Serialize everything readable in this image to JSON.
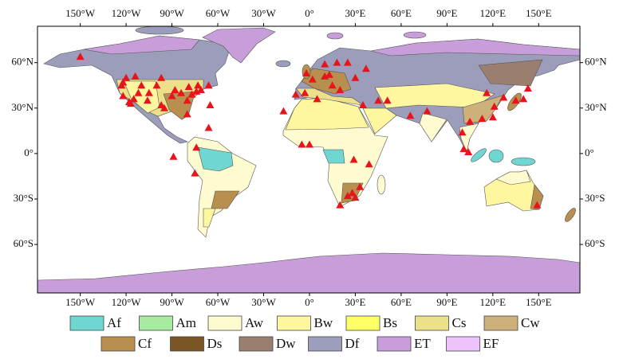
{
  "map": {
    "xlim": [
      -178,
      177
    ],
    "ylim": [
      -92,
      84
    ],
    "xticks": [
      {
        "value": -150,
        "label": "150°W"
      },
      {
        "value": -120,
        "label": "120°W"
      },
      {
        "value": -90,
        "label": "90°W"
      },
      {
        "value": -60,
        "label": "60°W"
      },
      {
        "value": -30,
        "label": "30°W"
      },
      {
        "value": 0,
        "label": "0°"
      },
      {
        "value": 30,
        "label": "30°E"
      },
      {
        "value": 60,
        "label": "60°E"
      },
      {
        "value": 90,
        "label": "90°E"
      },
      {
        "value": 120,
        "label": "120°E"
      },
      {
        "value": 150,
        "label": "150°E"
      }
    ],
    "yticks": [
      {
        "value": 60,
        "label": "60°N"
      },
      {
        "value": 30,
        "label": "30°N"
      },
      {
        "value": 0,
        "label": "0°"
      },
      {
        "value": -30,
        "label": "30°S"
      },
      {
        "value": -60,
        "label": "60°S"
      }
    ],
    "points": {
      "color": "#e8141c",
      "lon": [
        -150,
        -122,
        -123,
        -122,
        -118,
        -117,
        -112,
        -105,
        -106,
        -97,
        -95,
        -90,
        -88,
        -84,
        -80,
        -77,
        -74,
        -71,
        -80,
        -100,
        -110,
        -115,
        -120,
        -114,
        -97,
        -79,
        -73,
        -66,
        -65,
        -66,
        -89,
        -75,
        -74,
        -9,
        -3,
        2,
        10,
        13,
        18,
        25,
        15,
        20,
        37,
        30,
        10,
        -2,
        -17,
        5,
        -5,
        0,
        29,
        39,
        28,
        25,
        30,
        20,
        33,
        35,
        45,
        51,
        77,
        66,
        105,
        100,
        101,
        104,
        116,
        121,
        113,
        120,
        127,
        135,
        140,
        143,
        149
      ],
      "lat": [
        64,
        47,
        45,
        38,
        34,
        33,
        40,
        40,
        35,
        32,
        30,
        38,
        42,
        40,
        35,
        39,
        41,
        42,
        26,
        45,
        45,
        36,
        50,
        51,
        50,
        44,
        45,
        45,
        32,
        17,
        -2,
        -13,
        4,
        39,
        40,
        49,
        51,
        52,
        60,
        60,
        45,
        42,
        56,
        50,
        59,
        53,
        28,
        36,
        6,
        6,
        -4,
        -7,
        -26,
        -28,
        -29,
        -34,
        -22,
        32,
        35,
        35,
        28,
        25,
        21,
        14,
        3,
        1,
        40,
        31,
        23,
        24,
        37,
        35,
        36,
        43,
        -34
      ]
    },
    "legend": [
      {
        "name": "Af",
        "color": "#6fd6d2"
      },
      {
        "name": "Am",
        "color": "#a6eba0"
      },
      {
        "name": "Aw",
        "color": "#fffbd0"
      },
      {
        "name": "Bw",
        "color": "#fff6a0"
      },
      {
        "name": "Bs",
        "color": "#ffff66"
      },
      {
        "name": "Cs",
        "color": "#ece08a"
      },
      {
        "name": "Cw",
        "color": "#cdb07a"
      },
      {
        "name": "Cf",
        "color": "#b88f4e"
      },
      {
        "name": "Ds",
        "color": "#7a5626"
      },
      {
        "name": "Dw",
        "color": "#9a7e70"
      },
      {
        "name": "Df",
        "color": "#9c9cbb"
      },
      {
        "name": "ET",
        "color": "#c79ed9"
      },
      {
        "name": "EF",
        "color": "#ecc4fb"
      }
    ]
  }
}
